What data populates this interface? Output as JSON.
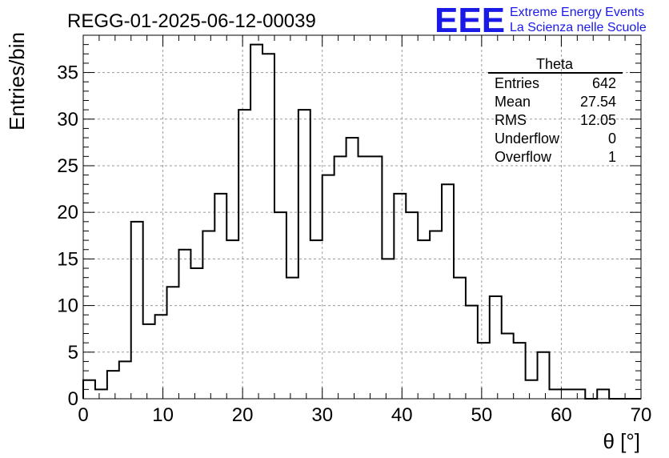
{
  "chart_data": {
    "type": "bar",
    "title": "REGG-01-2025-06-12-00039",
    "xlabel": "θ [°]",
    "ylabel": "Entries/bin",
    "xlim": [
      0,
      70
    ],
    "ylim": [
      0,
      39
    ],
    "xticks": [
      0,
      10,
      20,
      30,
      40,
      50,
      60,
      70
    ],
    "yticks": [
      0,
      5,
      10,
      15,
      20,
      25,
      30,
      35
    ],
    "grid": true,
    "bin_width": 1.5,
    "bin_edges_start": 0,
    "values": [
      2,
      1,
      3,
      4,
      19,
      8,
      9,
      12,
      16,
      14,
      18,
      22,
      17,
      31,
      38,
      37,
      20,
      13,
      31,
      17,
      24,
      26,
      28,
      26,
      26,
      15,
      22,
      20,
      17,
      18,
      23,
      13,
      10,
      6,
      11,
      7,
      6,
      2,
      5,
      1,
      1,
      1,
      0,
      1,
      0,
      0,
      0
    ],
    "legend_position": "top-right",
    "stats": {
      "name": "Theta",
      "rows": [
        {
          "label": "Entries",
          "value": "642"
        },
        {
          "label": "Mean",
          "value": "27.54"
        },
        {
          "label": "RMS",
          "value": "12.05"
        },
        {
          "label": "Underflow",
          "value": "0"
        },
        {
          "label": "Overflow",
          "value": "1"
        }
      ]
    }
  },
  "logo": {
    "text": "EEE",
    "line1": "Extreme Energy Events",
    "line2": "La Scienza nelle Scuole",
    "color": "#1a1ae6"
  }
}
